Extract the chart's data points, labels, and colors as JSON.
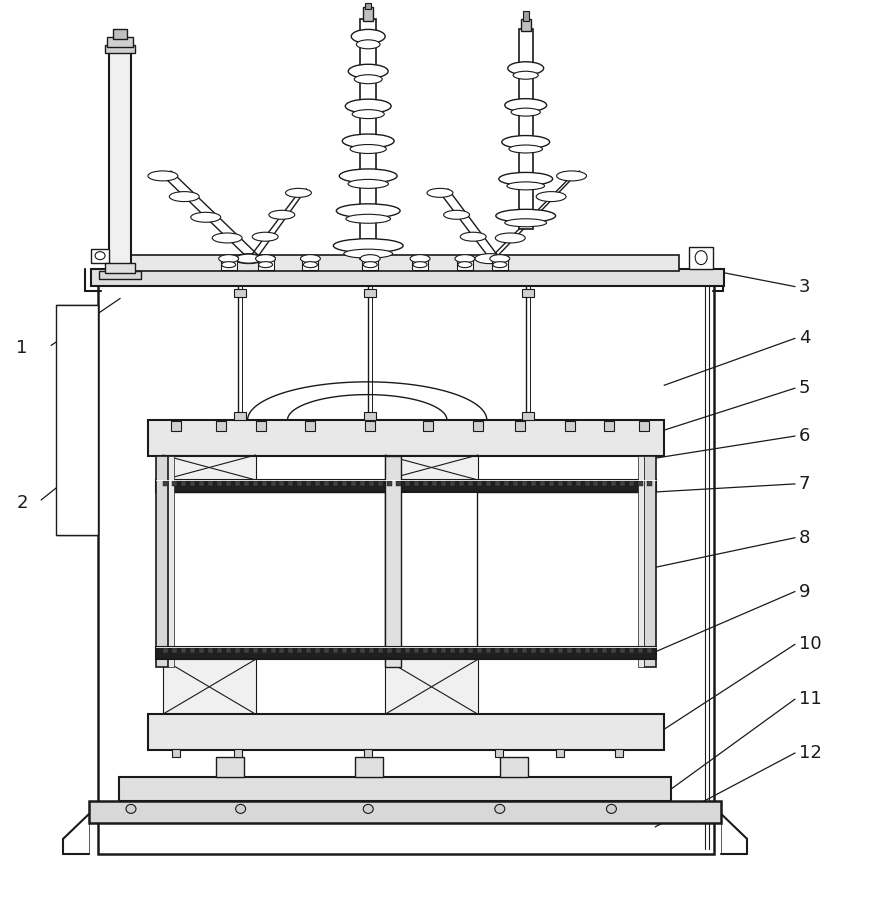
{
  "bg_color": "#ffffff",
  "lc": "#1a1a1a",
  "lw": 1.0,
  "fig_w": 8.71,
  "fig_h": 9.22
}
